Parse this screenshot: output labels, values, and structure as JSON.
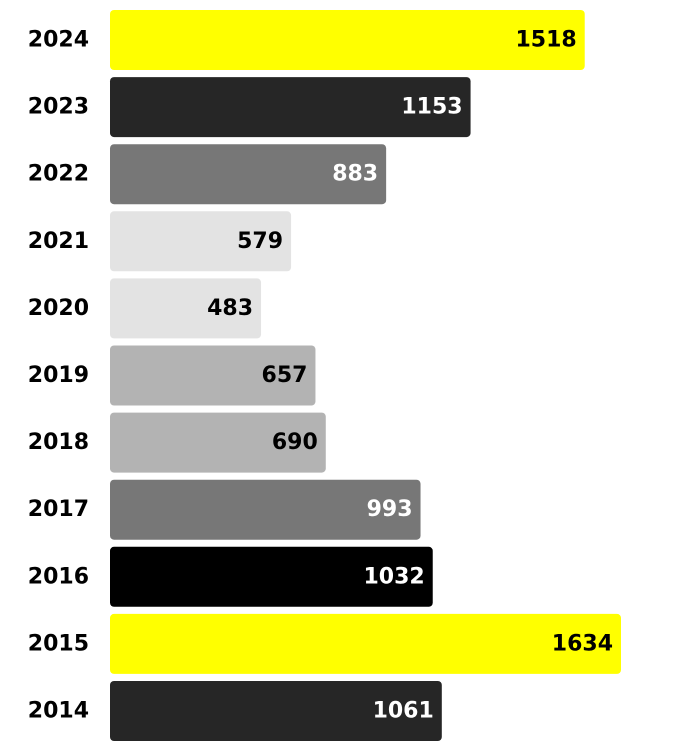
{
  "chart_data": {
    "type": "bar",
    "orientation": "horizontal",
    "categories": [
      "2024",
      "2023",
      "2022",
      "2021",
      "2020",
      "2019",
      "2018",
      "2017",
      "2016",
      "2015",
      "2014"
    ],
    "values": [
      1518,
      1153,
      883,
      579,
      483,
      657,
      690,
      993,
      1032,
      1634,
      1061
    ],
    "data_labels": [
      "1518",
      "1153",
      "883",
      "579",
      "483",
      "657",
      "690",
      "993",
      "1032",
      "1634",
      "1061"
    ],
    "bar_colors": [
      "#ffff00",
      "#262626",
      "#777777",
      "#e3e3e3",
      "#e3e3e3",
      "#b3b3b3",
      "#b3b3b3",
      "#777777",
      "#000000",
      "#ffff00",
      "#262626"
    ],
    "label_colors": [
      "#000000",
      "#ffffff",
      "#ffffff",
      "#000000",
      "#000000",
      "#000000",
      "#000000",
      "#ffffff",
      "#ffffff",
      "#000000",
      "#ffffff"
    ],
    "title": "",
    "xlabel": "",
    "ylabel": "",
    "xlim": [
      0,
      1750
    ],
    "grid": false,
    "legend": "none"
  }
}
